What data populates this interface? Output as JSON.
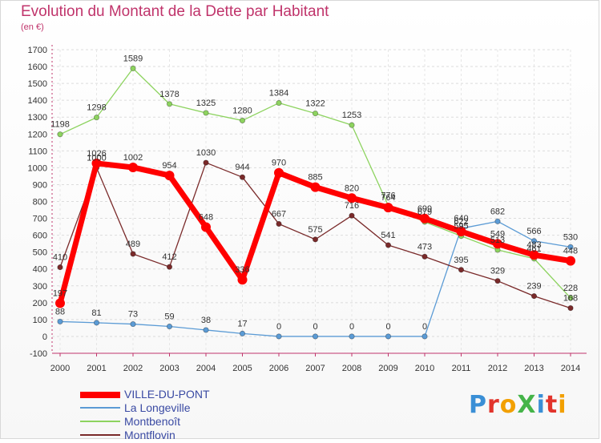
{
  "title": "Evolution du Montant de la Dette par Habitant",
  "subtitle": "(en €)",
  "brand": {
    "text": "ProXiti",
    "colors": [
      "#3a8fd6",
      "#e2342c",
      "#f2a000",
      "#45b449",
      "#3a8fd6",
      "#e2342c",
      "#f2a000"
    ]
  },
  "chart_data": {
    "type": "line",
    "title": "Evolution du Montant de la Dette par Habitant",
    "ylabel": "(en €)",
    "xlabel": "",
    "x": [
      "2000",
      "2001",
      "2002",
      "2003",
      "2004",
      "2005",
      "2006",
      "2007",
      "2008",
      "2009",
      "2010",
      "2011",
      "2012",
      "2013",
      "2014"
    ],
    "ylim": [
      -100,
      1700
    ],
    "yticks": [
      "-100",
      "0",
      "100",
      "200",
      "300",
      "400",
      "500",
      "600",
      "700",
      "800",
      "900",
      "1000",
      "1100",
      "1200",
      "1300",
      "1400",
      "1500",
      "1600",
      "1700"
    ],
    "grid": "horizontal",
    "legend_position": "bottom-left",
    "series": [
      {
        "name": "La Longeville",
        "color": "#5b9bd5",
        "values": [
          88,
          81,
          73,
          59,
          38,
          17,
          0,
          0,
          0,
          0,
          0,
          640,
          682,
          566,
          530
        ],
        "labels": [
          "88",
          "81",
          "73",
          "59",
          "38",
          "17",
          "0",
          "0",
          "0",
          "0",
          "0",
          "640",
          "682",
          "566",
          "530"
        ]
      },
      {
        "name": "Montbenoît",
        "color": "#8dd35f",
        "values": [
          1198,
          1298,
          1589,
          1378,
          1325,
          1280,
          1384,
          1322,
          1253,
          776,
          679,
          595,
          513,
          461,
          228
        ],
        "labels": [
          "1198",
          "1298",
          "1589",
          "1378",
          "1325",
          "1280",
          "1384",
          "1322",
          "1253",
          "776",
          "679",
          "595",
          "513",
          "461",
          "228"
        ]
      },
      {
        "name": "Montflovin",
        "color": "#7a2a2a",
        "values": [
          410,
          1000,
          489,
          412,
          1030,
          944,
          667,
          575,
          716,
          541,
          473,
          395,
          329,
          239,
          168
        ],
        "labels": [
          "410",
          "1000",
          "489",
          "412",
          "1030",
          "944",
          "667",
          "575",
          "716",
          "541",
          "473",
          "395",
          "329",
          "239",
          "168"
        ]
      },
      {
        "name": "VILLE-DU-PONT",
        "color": "#ff0000",
        "values": [
          197,
          1026,
          1002,
          954,
          648,
          336,
          970,
          885,
          820,
          764,
          699,
          622,
          549,
          483,
          448
        ],
        "labels": [
          "197",
          "1026",
          "1002",
          "954",
          "648",
          "336",
          "970",
          "885",
          "820",
          "764",
          "699",
          "622",
          "549",
          "483",
          "448"
        ]
      }
    ]
  },
  "legend": [
    {
      "label": "VILLE-DU-PONT",
      "color": "#ff0000"
    },
    {
      "label": "La Longeville",
      "color": "#5b9bd5"
    },
    {
      "label": "Montbenoît",
      "color": "#8dd35f"
    },
    {
      "label": "Montflovin",
      "color": "#7a2a2a"
    }
  ]
}
